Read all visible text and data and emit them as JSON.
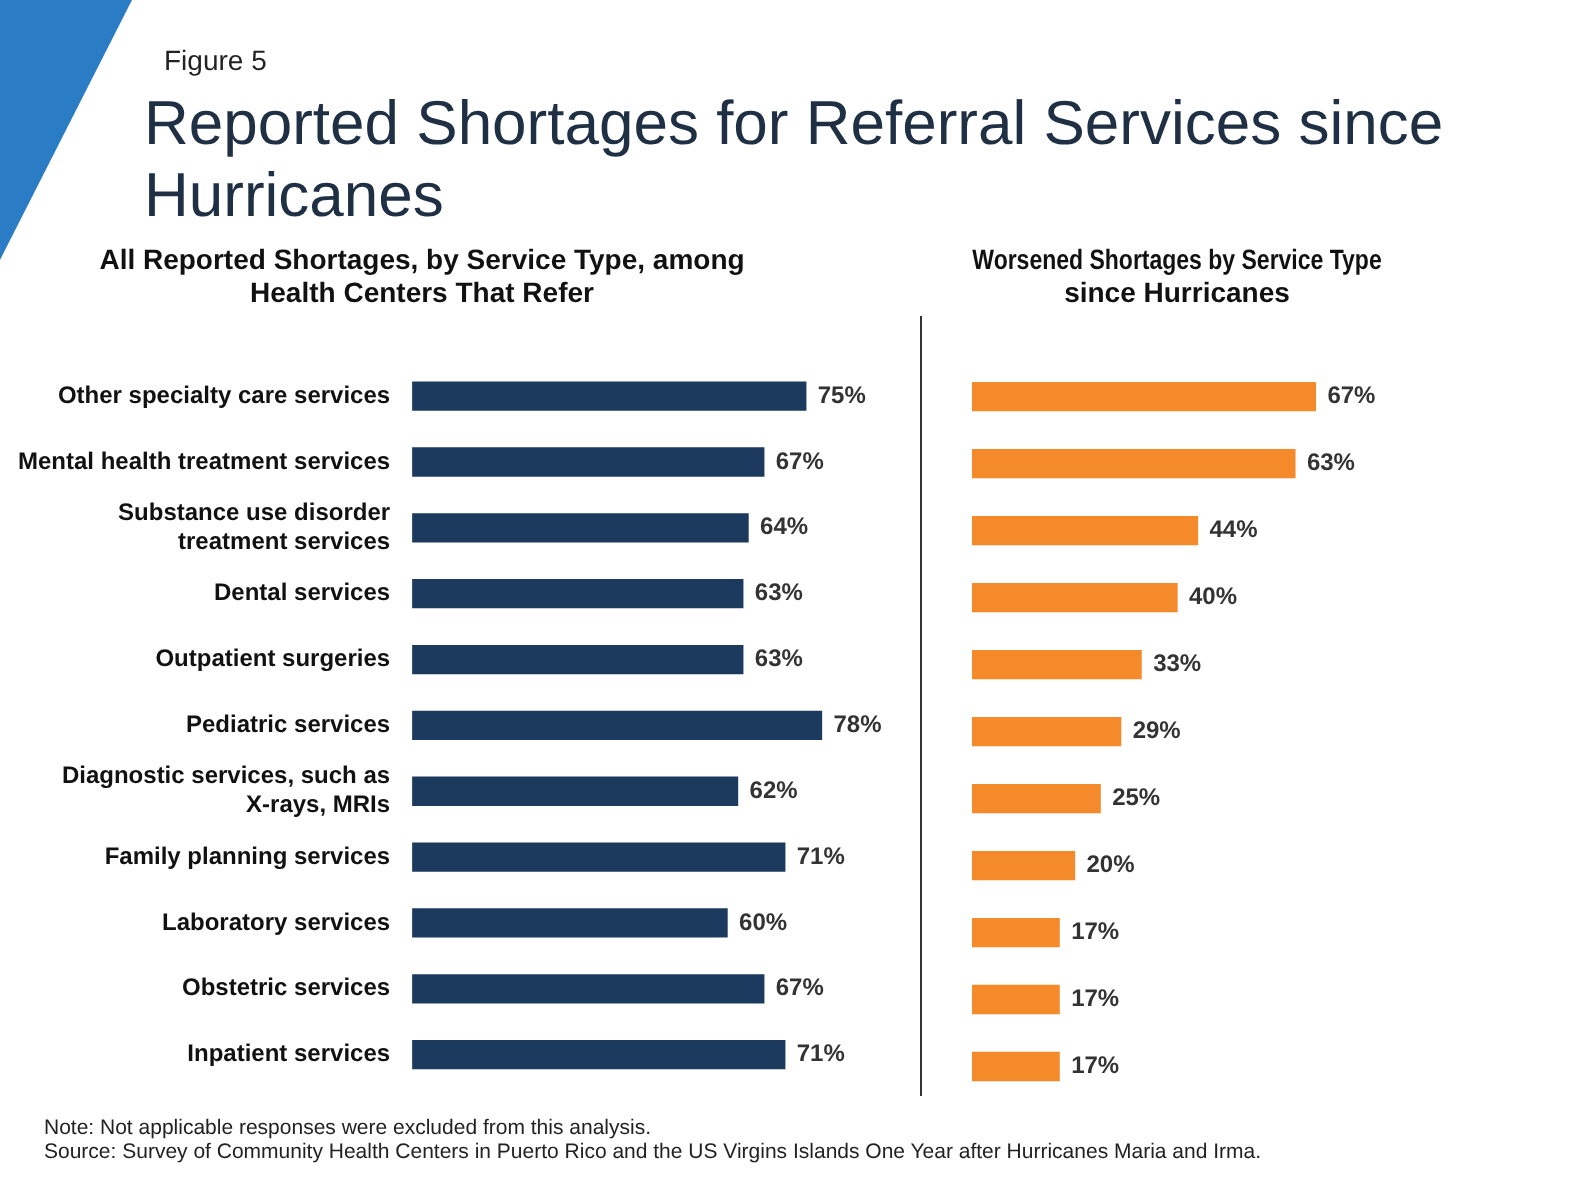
{
  "chart_data": [
    {
      "type": "other",
      "subtitle": "Figure 5",
      "title": "Reported Shortages for Referral Services since Hurricanes",
      "annotations": [
        "Note: Not applicable responses were  excluded from this analysis.",
        "Source: Survey of Community Health Centers in Puerto Rico and the US Virgins Islands One Year after Hurricanes Maria and Irma."
      ]
    },
    {
      "type": "bar",
      "orientation": "horizontal",
      "title": "All Reported Shortages, by Service Type, among Health Centers That Refer",
      "categories": [
        "Other specialty care services",
        "Mental health treatment services",
        "Substance use disorder treatment services",
        "Dental services",
        "Outpatient surgeries",
        "Pediatric services",
        "Diagnostic services, such as X-rays, MRIs",
        "Family planning services",
        "Laboratory services",
        "Obstetric services",
        "Inpatient services"
      ],
      "values": [
        75,
        67,
        64,
        63,
        63,
        78,
        62,
        71,
        60,
        67,
        71
      ],
      "value_labels": [
        "75%",
        "67%",
        "64%",
        "63%",
        "63%",
        "78%",
        "62%",
        "71%",
        "60%",
        "67%",
        "71%"
      ],
      "color": "#1c3a5e"
    },
    {
      "type": "bar",
      "orientation": "horizontal",
      "title": "Worsened Shortages by Service Type since Hurricanes",
      "categories": [
        null,
        null,
        null,
        null,
        null,
        null,
        null,
        null,
        null,
        null,
        null
      ],
      "values": [
        67,
        63,
        44,
        40,
        33,
        29,
        25,
        20,
        17,
        17,
        17
      ],
      "value_labels": [
        "67%",
        "63%",
        "44%",
        "40%",
        "33%",
        "29%",
        "25%",
        "20%",
        "17%",
        "17%",
        "17%"
      ],
      "color": "#f58a2a"
    }
  ]
}
